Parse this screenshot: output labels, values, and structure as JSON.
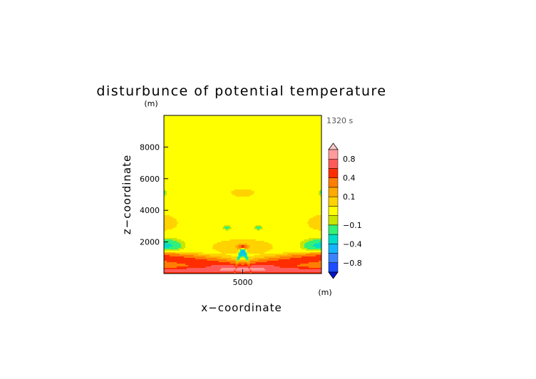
{
  "chart_data": {
    "type": "heatmap",
    "title": "disturbunce of potential temperature",
    "time_label": "1320 s",
    "xlabel": "x−coordinate",
    "ylabel": "z−coordinate",
    "x_unit": "(m)",
    "y_unit": "(m)",
    "xlim": [
      0,
      10000
    ],
    "ylim": [
      0,
      10000
    ],
    "x_ticks": [
      {
        "value": 5000,
        "label": "5000"
      }
    ],
    "y_ticks": [
      {
        "value": 2000,
        "label": "2000"
      },
      {
        "value": 4000,
        "label": "4000"
      },
      {
        "value": 6000,
        "label": "6000"
      },
      {
        "value": 8000,
        "label": "8000"
      }
    ],
    "colorbar": {
      "levels": [
        -1.0,
        -0.8,
        -0.6,
        -0.4,
        -0.2,
        -0.1,
        -0.05,
        0.05,
        0.1,
        0.2,
        0.4,
        0.6,
        0.8,
        1.0
      ],
      "colors": [
        "#1e4cff",
        "#3c82ff",
        "#14b4ff",
        "#00dcc8",
        "#32f078",
        "#c8e600",
        "#ffff00",
        "#ffd200",
        "#ffaa00",
        "#ff7d00",
        "#ff2d00",
        "#ff5a5a",
        "#ff9b9b"
      ],
      "under_color": "#0014c8",
      "over_color": "#ffc8c8",
      "tick_labels": [
        {
          "value": -0.8,
          "label": "−0.8"
        },
        {
          "value": -0.4,
          "label": "−0.4"
        },
        {
          "value": -0.1,
          "label": "−0.1"
        },
        {
          "value": 0.1,
          "label": "0.1"
        },
        {
          "value": 0.4,
          "label": "0.4"
        },
        {
          "value": 0.8,
          "label": "0.8"
        }
      ]
    },
    "background_value": 0.0,
    "field_features": [
      {
        "x": 5000,
        "z": 5100,
        "sx": 750,
        "sz": 260,
        "amp": 0.08
      },
      {
        "x": 0,
        "z": 3200,
        "sx": 900,
        "sz": 500,
        "amp": 0.08
      },
      {
        "x": 10000,
        "z": 3200,
        "sx": 900,
        "sz": 500,
        "amp": 0.08
      },
      {
        "x": 5000,
        "z": 1700,
        "sx": 1800,
        "sz": 420,
        "amp": 0.09
      },
      {
        "x": 4000,
        "z": 2900,
        "sx": 230,
        "sz": 120,
        "amp": -0.13
      },
      {
        "x": 6000,
        "z": 2900,
        "sx": 230,
        "sz": 120,
        "amp": -0.13
      },
      {
        "x": 0,
        "z": 5100,
        "sx": 130,
        "sz": 150,
        "amp": -0.13
      },
      {
        "x": 10000,
        "z": 5100,
        "sx": 130,
        "sz": 150,
        "amp": -0.13
      },
      {
        "x": 0,
        "z": 1750,
        "sx": 850,
        "sz": 330,
        "amp": -0.25
      },
      {
        "x": 10000,
        "z": 1750,
        "sx": 850,
        "sz": 330,
        "amp": -0.25
      },
      {
        "x": 5000,
        "z": 2000,
        "sx": 4500,
        "sz": 1300,
        "amp": 0.0
      }
    ],
    "warm_band": {
      "z_near_center": 350,
      "z_at_edges": 1000,
      "halfwidth": 260,
      "amp": 0.55
    },
    "warm_band_core": {
      "z": 200,
      "halfwidth": 160,
      "amp": 0.75
    },
    "cold_arch": {
      "x": 5000,
      "z_top": 1350,
      "halfwidth_x": 450,
      "thickness": 180,
      "amp": -0.5
    },
    "hot_spot": {
      "x": 5000,
      "z": 1700,
      "sx": 170,
      "sz": 80,
      "amp": 0.5
    }
  }
}
